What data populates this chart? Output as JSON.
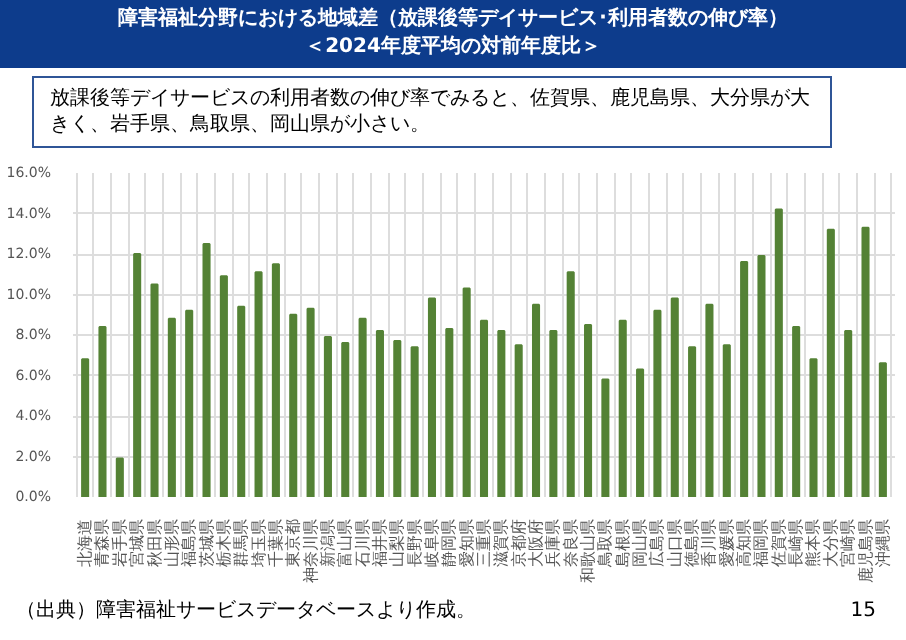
{
  "chart_data": {
    "type": "bar",
    "title": "障害福祉分野における地域差（放課後等デイサービス･利用者数の伸び率）",
    "subtitle": "＜2024年度平均の対前年度比＞",
    "annotations": [
      "放課後等デイサービスの利用者数の伸び率でみると、佐賀県、鹿児島県、大分県が大きく、岩手県、鳥取県、岡山県が小さい。",
      "（出典）障害福祉サービスデータベースより作成。",
      "15"
    ],
    "categories": [
      "北海道",
      "青森県",
      "岩手県",
      "宮城県",
      "秋田県",
      "山形県",
      "福島県",
      "茨城県",
      "栃木県",
      "群馬県",
      "埼玉県",
      "千葉県",
      "東京都",
      "神奈川県",
      "新潟県",
      "富山県",
      "石川県",
      "福井県",
      "山梨県",
      "長野県",
      "岐阜県",
      "静岡県",
      "愛知県",
      "三重県",
      "滋賀県",
      "京都府",
      "大阪府",
      "兵庫県",
      "奈良県",
      "和歌山県",
      "鳥取県",
      "島根県",
      "岡山県",
      "広島県",
      "山口県",
      "徳島県",
      "香川県",
      "愛媛県",
      "高知県",
      "福岡県",
      "佐賀県",
      "長崎県",
      "熊本県",
      "大分県",
      "宮崎県",
      "鹿児島県",
      "沖縄県"
    ],
    "values": [
      6.8,
      8.4,
      1.9,
      12.0,
      10.5,
      8.8,
      9.2,
      12.5,
      10.9,
      9.4,
      11.1,
      11.5,
      9.0,
      9.3,
      7.9,
      7.6,
      8.8,
      8.2,
      7.7,
      7.4,
      9.8,
      8.3,
      10.3,
      8.7,
      8.2,
      7.5,
      9.5,
      8.2,
      11.1,
      8.5,
      5.8,
      8.7,
      6.3,
      9.2,
      9.8,
      7.4,
      9.5,
      7.5,
      11.6,
      11.9,
      14.2,
      8.4,
      6.8,
      13.2,
      8.2,
      13.3,
      6.6
    ],
    "color": "#548235",
    "ylim": [
      0,
      16
    ],
    "yticks": [
      {
        "value": 0,
        "label": "0.0%"
      },
      {
        "value": 2,
        "label": "2.0%"
      },
      {
        "value": 4,
        "label": "4.0%"
      },
      {
        "value": 6,
        "label": "6.0%"
      },
      {
        "value": 8,
        "label": "8.0%"
      },
      {
        "value": 10,
        "label": "10.0%"
      },
      {
        "value": 12,
        "label": "12.0%"
      },
      {
        "value": 14,
        "label": "14.0%"
      },
      {
        "value": 16,
        "label": "16.0%"
      }
    ],
    "grid": true
  }
}
